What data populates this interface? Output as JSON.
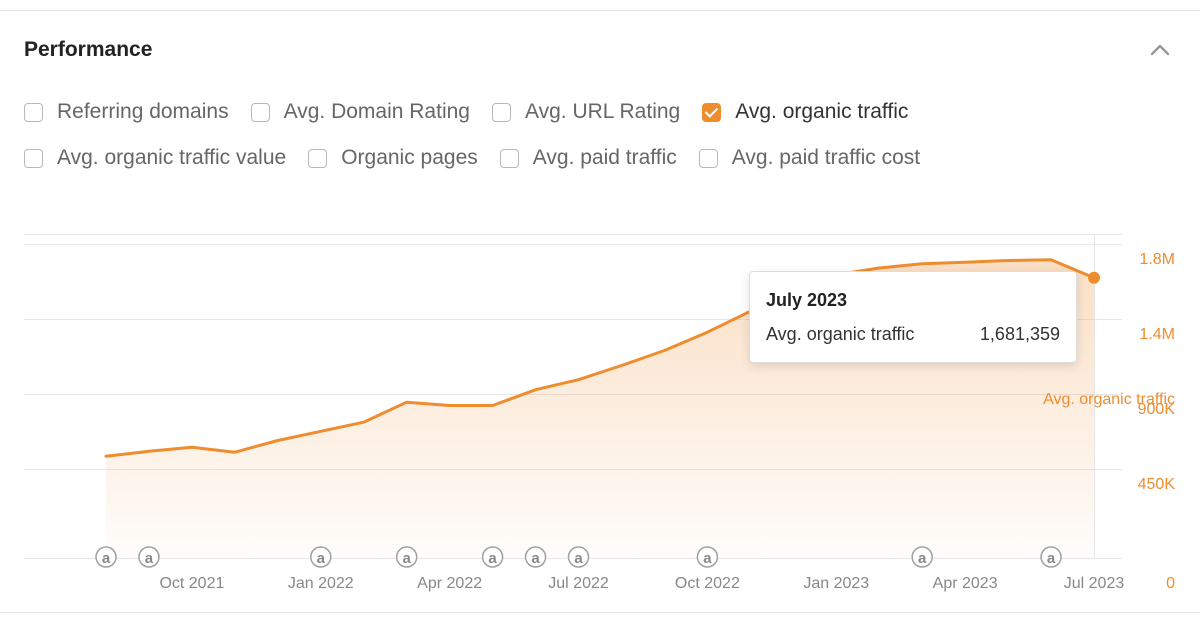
{
  "panel": {
    "title": "Performance"
  },
  "metrics": [
    [
      {
        "label": "Referring domains",
        "checked": false
      },
      {
        "label": "Avg. Domain Rating",
        "checked": false
      },
      {
        "label": "Avg. URL Rating",
        "checked": false
      },
      {
        "label": "Avg. organic traffic",
        "checked": true
      }
    ],
    [
      {
        "label": "Avg. organic traffic value",
        "checked": false
      },
      {
        "label": "Organic pages",
        "checked": false
      },
      {
        "label": "Avg. paid traffic",
        "checked": false
      },
      {
        "label": "Avg. paid traffic cost",
        "checked": false
      }
    ]
  ],
  "tooltip": {
    "title": "July 2023",
    "label": "Avg. organic traffic",
    "value": "1,681,359"
  },
  "colors": {
    "accent": "#ef8c2e",
    "axis_label": "#ef8c2e",
    "grid": "#e8e8e8",
    "tick_text": "#888888",
    "annotation": "#a0a0a0"
  },
  "chart_data": {
    "type": "area",
    "series": [
      {
        "name": "Avg. organic traffic",
        "x": [
          "2021-08",
          "2021-09",
          "2021-10",
          "2021-11",
          "2021-12",
          "2022-01",
          "2022-02",
          "2022-03",
          "2022-04",
          "2022-05",
          "2022-06",
          "2022-07",
          "2022-08",
          "2022-09",
          "2022-10",
          "2022-11",
          "2022-12",
          "2023-01",
          "2023-02",
          "2023-03",
          "2023-04",
          "2023-05",
          "2023-06",
          "2023-07"
        ],
        "values": [
          610000,
          640000,
          665000,
          635000,
          705000,
          760000,
          815000,
          935000,
          915000,
          915000,
          1010000,
          1070000,
          1155000,
          1245000,
          1355000,
          1480000,
          1610000,
          1700000,
          1740000,
          1765000,
          1775000,
          1785000,
          1790000,
          1681359
        ]
      }
    ],
    "y_axis_label": "Avg. organic traffic",
    "y_ticks": [
      {
        "value": 0,
        "label": "0"
      },
      {
        "value": 450000,
        "label": "450K"
      },
      {
        "value": 900000,
        "label": "900K"
      },
      {
        "value": 1350000,
        "label": "1.4M"
      },
      {
        "value": 1800000,
        "label": "1.8M"
      }
    ],
    "ylim": [
      0,
      1800000
    ],
    "x_ticks": [
      {
        "x": "2021-10",
        "label": "Oct 2021"
      },
      {
        "x": "2022-01",
        "label": "Jan 2022"
      },
      {
        "x": "2022-04",
        "label": "Apr 2022"
      },
      {
        "x": "2022-07",
        "label": "Jul 2022"
      },
      {
        "x": "2022-10",
        "label": "Oct 2022"
      },
      {
        "x": "2023-01",
        "label": "Jan 2023"
      },
      {
        "x": "2023-04",
        "label": "Apr 2023"
      },
      {
        "x": "2023-07",
        "label": "Jul 2023"
      }
    ],
    "annotations": [
      {
        "x": "2021-08",
        "label": "a"
      },
      {
        "x": "2021-09",
        "label": "a"
      },
      {
        "x": "2022-01",
        "label": "a"
      },
      {
        "x": "2022-03",
        "label": "a"
      },
      {
        "x": "2022-05",
        "label": "a"
      },
      {
        "x": "2022-06",
        "label": "a"
      },
      {
        "x": "2022-07",
        "label": "a"
      },
      {
        "x": "2022-10",
        "label": "a"
      },
      {
        "x": "2023-03",
        "label": "a"
      },
      {
        "x": "2023-06",
        "label": "a"
      }
    ],
    "highlight_x": "2023-07",
    "grid": true,
    "legend": "none"
  }
}
